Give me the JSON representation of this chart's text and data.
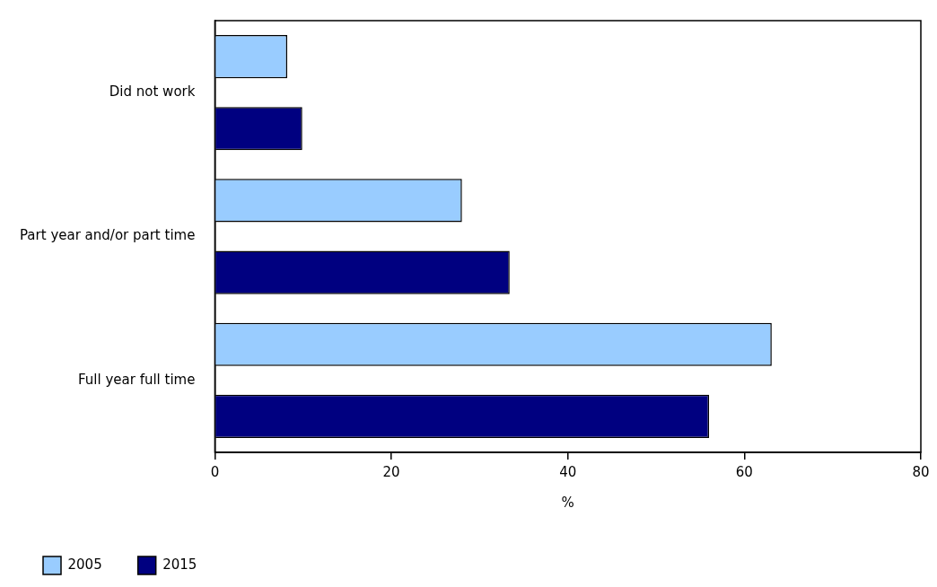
{
  "chart_data": {
    "type": "bar",
    "orientation": "horizontal",
    "xlabel": "%",
    "categories": [
      "Did not work",
      "Part year and/or part time",
      "Full year full time"
    ],
    "series": [
      {
        "name": "2005",
        "color": "#99ccff",
        "values": [
          8.2,
          28.0,
          63.1
        ]
      },
      {
        "name": "2015",
        "color": "#000080",
        "values": [
          9.9,
          33.4,
          56.0
        ]
      }
    ],
    "xlim": [
      0,
      80
    ],
    "xticks": [
      0,
      20,
      40,
      60,
      80
    ],
    "grid": false,
    "legend": "bottom"
  }
}
